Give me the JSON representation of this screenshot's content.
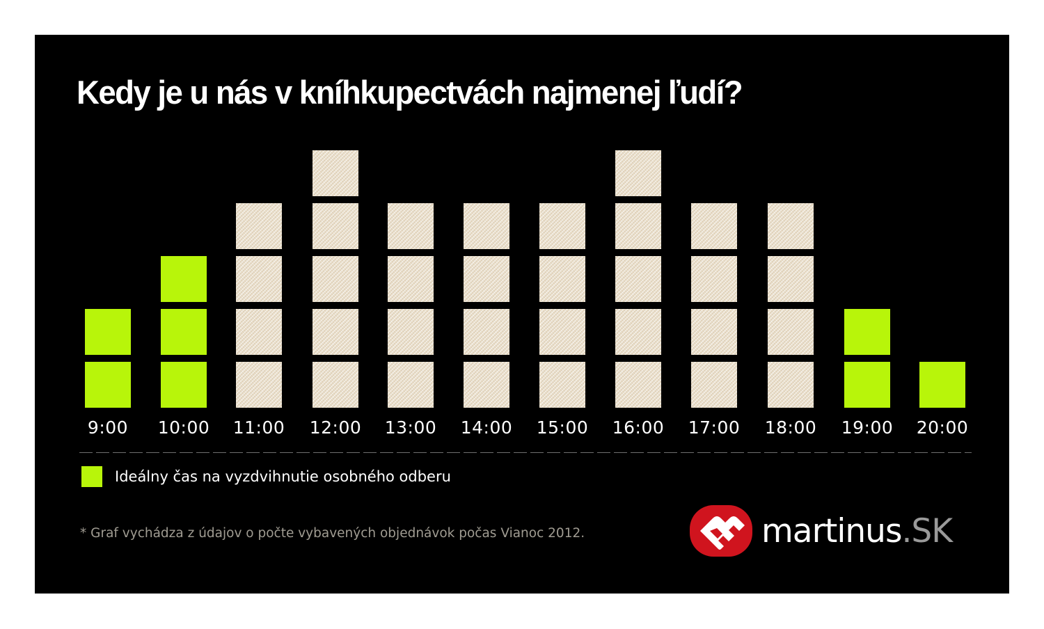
{
  "title": "Kedy je u nás v kníhkupectvách najmenej ľudí?",
  "colors": {
    "background": "#000000",
    "highlight_green": "#b8f50a",
    "regular_block": "#e9ddc8",
    "logo_red": "#d0141e",
    "footnote_gray": "#a09c92"
  },
  "legend": {
    "label": "Ideálny čas na vyzdvihnutie osobného odberu",
    "color": "#b8f50a"
  },
  "footnote": "* Graf vychádza z údajov o počte vybavených objednávok počas Vianoc 2012.",
  "logo": {
    "name": "martinus",
    "tld": ".SK",
    "icon": "martinus-m-heart-icon"
  },
  "chart_data": {
    "type": "bar",
    "title": "Kedy je u nás v kníhkupectvách najmenej ľudí?",
    "xlabel": "",
    "ylabel": "",
    "categories": [
      "9:00",
      "10:00",
      "11:00",
      "12:00",
      "13:00",
      "14:00",
      "15:00",
      "16:00",
      "17:00",
      "18:00",
      "19:00",
      "20:00"
    ],
    "values": [
      2,
      3,
      4,
      5,
      4,
      4,
      4,
      5,
      4,
      4,
      2,
      1
    ],
    "highlighted": [
      true,
      true,
      false,
      false,
      false,
      false,
      false,
      false,
      false,
      false,
      true,
      true
    ],
    "ylim": [
      0,
      5
    ],
    "grid": false,
    "legend": [
      {
        "label": "Ideálny čas na vyzdvihnutie osobného odberu",
        "color": "#b8f50a"
      }
    ],
    "legend_position": "bottom-left",
    "note": "* Graf vychádza z údajov o počte vybavených objednávok počas Vianoc 2012.",
    "style": "stacked unit blocks (pictogram bars)"
  }
}
